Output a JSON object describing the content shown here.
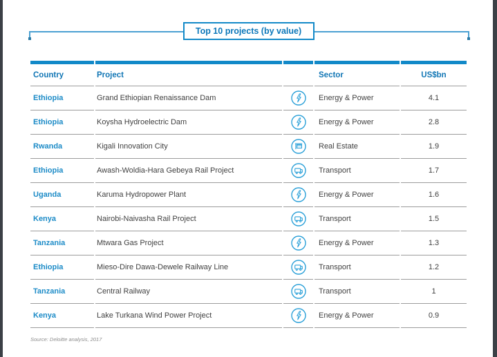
{
  "page": {
    "title": "Top 10 projects (by value)",
    "source_note": "Source: Deloitte analysis, 2017"
  },
  "colors": {
    "accent_blue": "#1289c8",
    "header_text_blue": "#1176b5",
    "country_blue": "#1c8bc7",
    "icon_blue": "#2aa0d8",
    "divider_gray": "#9b9b9b",
    "body_text": "#404040",
    "source_gray": "#8d8d8d",
    "edge_strip": "#3b4046"
  },
  "table": {
    "headers": [
      {
        "label": "Country"
      },
      {
        "label": "Project"
      },
      {
        "label": ""
      },
      {
        "label": "Sector"
      },
      {
        "label": "US$bn"
      }
    ],
    "rows": [
      {
        "country": "Ethiopia",
        "project": "Grand Ethiopian Renaissance Dam",
        "icon": "lightning-icon",
        "sector": "Energy & Power",
        "value": "4.1"
      },
      {
        "country": "Ethiopia",
        "project": "Koysha Hydroelectric Dam",
        "icon": "lightning-icon",
        "sector": "Energy & Power",
        "value": "2.8"
      },
      {
        "country": "Rwanda",
        "project": "Kigali Innovation City",
        "icon": "storefront-icon",
        "sector": "Real Estate",
        "value": "1.9"
      },
      {
        "country": "Ethiopia",
        "project": "Awash-Woldia-Hara Gebeya Rail Project",
        "icon": "truck-icon",
        "sector": "Transport",
        "value": "1.7"
      },
      {
        "country": "Uganda",
        "project": "Karuma Hydropower Plant",
        "icon": "lightning-icon",
        "sector": "Energy & Power",
        "value": "1.6"
      },
      {
        "country": "Kenya",
        "project": "Nairobi-Naivasha Rail Project",
        "icon": "truck-icon",
        "sector": "Transport",
        "value": "1.5"
      },
      {
        "country": "Tanzania",
        "project": "Mtwara Gas Project",
        "icon": "lightning-icon",
        "sector": "Energy & Power",
        "value": "1.3"
      },
      {
        "country": "Ethiopia",
        "project": "Mieso-Dire Dawa-Dewele Railway Line",
        "icon": "truck-icon",
        "sector": "Transport",
        "value": "1.2"
      },
      {
        "country": "Tanzania",
        "project": "Central Railway",
        "icon": "truck-icon",
        "sector": "Transport",
        "value": "1"
      },
      {
        "country": "Kenya",
        "project": "Lake Turkana Wind Power Project",
        "icon": "lightning-icon",
        "sector": "Energy & Power",
        "value": "0.9"
      }
    ]
  },
  "chart_data": {
    "type": "table",
    "title": "Top 10 projects (by value)",
    "columns": [
      "Country",
      "Project",
      "Sector",
      "US$bn"
    ],
    "rows": [
      [
        "Ethiopia",
        "Grand Ethiopian Renaissance Dam",
        "Energy & Power",
        4.1
      ],
      [
        "Ethiopia",
        "Koysha Hydroelectric Dam",
        "Energy & Power",
        2.8
      ],
      [
        "Rwanda",
        "Kigali Innovation City",
        "Real Estate",
        1.9
      ],
      [
        "Ethiopia",
        "Awash-Woldia-Hara Gebeya Rail Project",
        "Transport",
        1.7
      ],
      [
        "Uganda",
        "Karuma Hydropower Plant",
        "Energy & Power",
        1.6
      ],
      [
        "Kenya",
        "Nairobi-Naivasha Rail Project",
        "Transport",
        1.5
      ],
      [
        "Tanzania",
        "Mtwara Gas Project",
        "Energy & Power",
        1.3
      ],
      [
        "Ethiopia",
        "Mieso-Dire Dawa-Dewele Railway Line",
        "Transport",
        1.2
      ],
      [
        "Tanzania",
        "Central Railway",
        "Transport",
        1.0
      ],
      [
        "Kenya",
        "Lake Turkana Wind Power Project",
        "Energy & Power",
        0.9
      ]
    ],
    "source": "Source: Deloitte analysis, 2017"
  }
}
